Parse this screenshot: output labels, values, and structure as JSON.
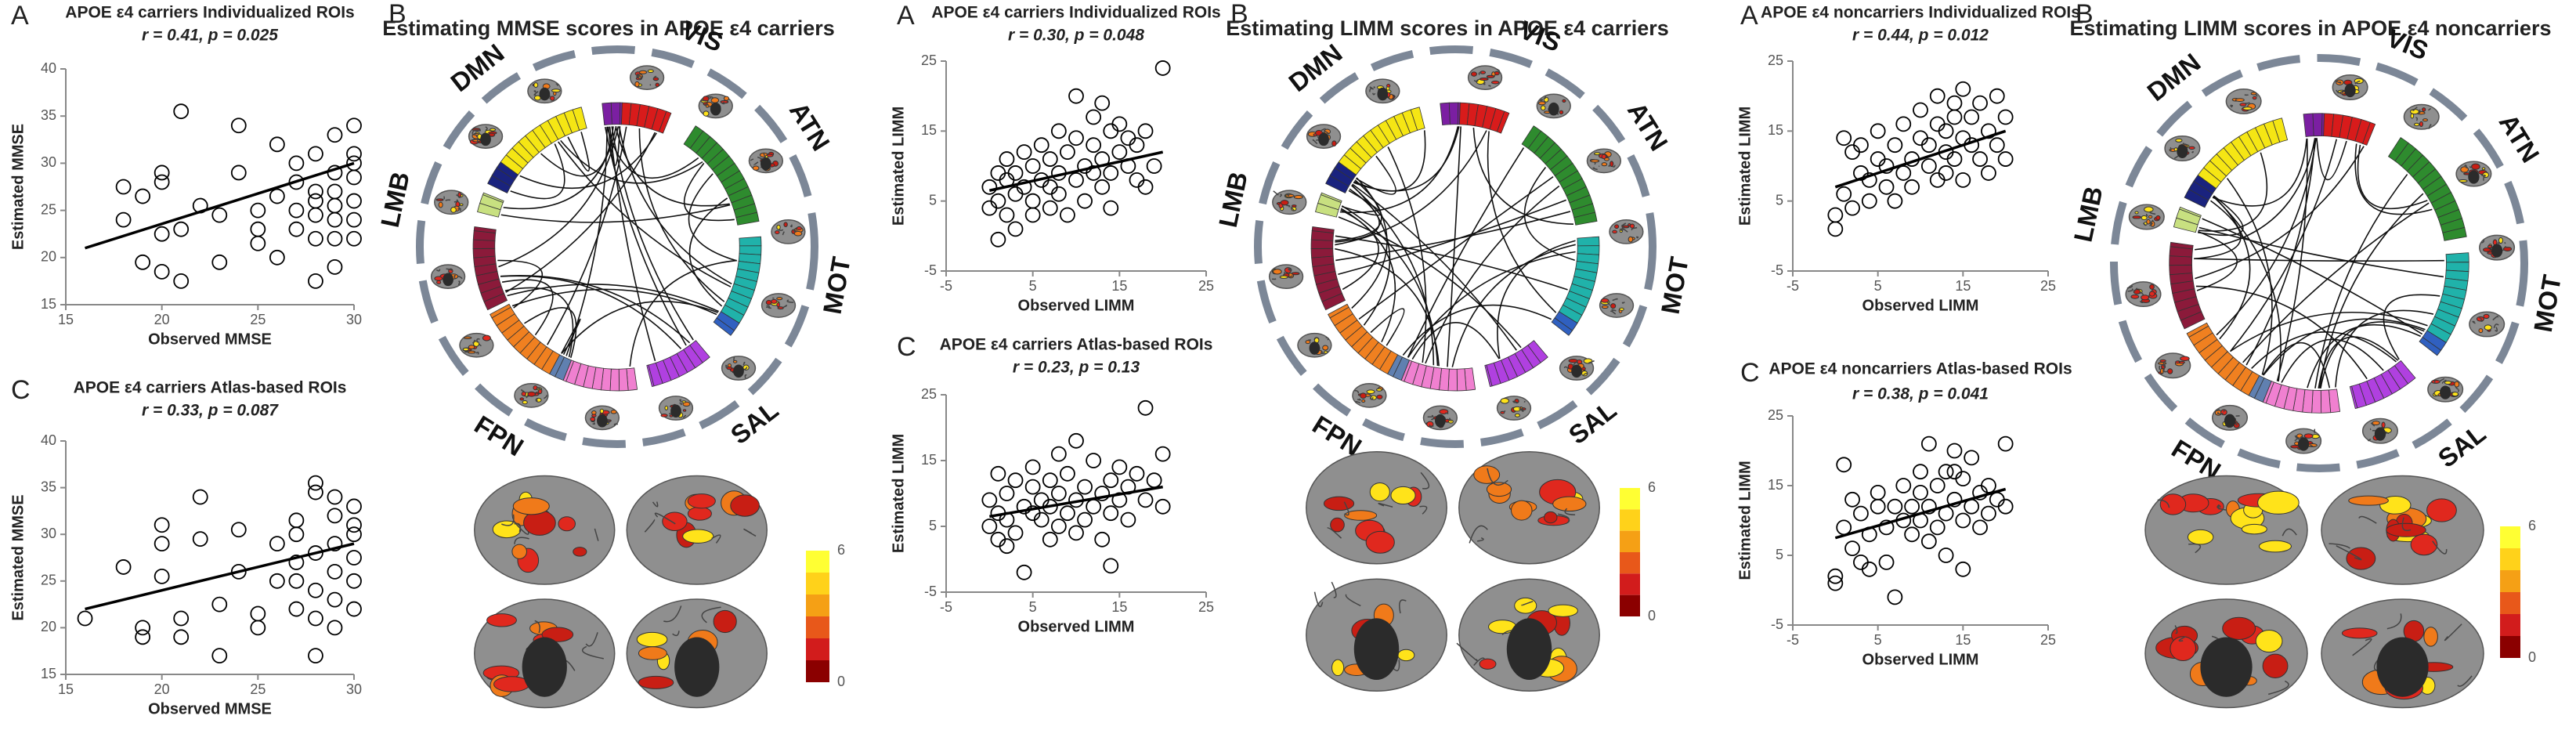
{
  "chart_data": [
    {
      "type": "scatter",
      "panel": "A",
      "title": "APOE ε4 carriers Individualized ROIs",
      "subtitle": "r = 0.41, p = 0.025",
      "x_label": "Observed MMSE",
      "y_label": "Estimated MMSE",
      "color": "#000000",
      "xlim": [
        15,
        30
      ],
      "xticks": [
        15,
        20,
        25,
        30
      ],
      "ylim": [
        15,
        40
      ],
      "yticks": [
        15,
        20,
        25,
        30,
        35,
        40
      ],
      "x": [
        18,
        18,
        19,
        19,
        20,
        20,
        20,
        20,
        21,
        21,
        21,
        22,
        23,
        23,
        24,
        24,
        25,
        25,
        25,
        26,
        26,
        26,
        27,
        27,
        27,
        27,
        28,
        28,
        28,
        28,
        28,
        29,
        29,
        29,
        29,
        29,
        29,
        30,
        30,
        30,
        30,
        30,
        30,
        30,
        29,
        28
      ],
      "values": [
        27.5,
        24,
        19.5,
        26.5,
        29,
        28,
        22.5,
        18.5,
        35.5,
        23,
        17.5,
        25.5,
        19.5,
        24.5,
        34,
        29,
        21.5,
        25,
        23,
        26.5,
        32,
        20,
        28,
        25,
        30,
        23,
        27,
        17.5,
        22,
        31,
        26,
        33,
        29,
        27,
        24,
        22,
        19,
        34,
        31,
        28.5,
        26,
        24,
        22,
        30,
        25.5,
        24.5
      ],
      "fit": {
        "x": [
          16,
          30
        ],
        "y": [
          21,
          30
        ]
      }
    },
    {
      "type": "scatter",
      "panel": "C",
      "title": "APOE ε4 carriers Atlas-based ROIs",
      "subtitle": "r = 0.33, p = 0.087",
      "x_label": "Observed MMSE",
      "y_label": "Estimated MMSE",
      "color": "#000000",
      "xlim": [
        15,
        30
      ],
      "xticks": [
        15,
        20,
        25,
        30
      ],
      "ylim": [
        15,
        40
      ],
      "yticks": [
        15,
        20,
        25,
        30,
        35,
        40
      ],
      "x": [
        16,
        18,
        19,
        19,
        20,
        20,
        20,
        21,
        21,
        22,
        22,
        23,
        23,
        24,
        24,
        25,
        25,
        26,
        26,
        27,
        27,
        27,
        27,
        28,
        28,
        28,
        28,
        28,
        29,
        29,
        29,
        29,
        29,
        29,
        30,
        30,
        30,
        30,
        30,
        30,
        28,
        27
      ],
      "values": [
        21,
        26.5,
        20,
        19,
        25.5,
        29,
        31,
        19,
        21,
        29.5,
        34,
        22.5,
        17,
        30.5,
        26,
        21.5,
        20,
        29,
        25,
        31.5,
        25,
        22,
        30,
        35.5,
        34.5,
        17,
        24,
        28,
        34,
        32,
        29,
        26,
        23,
        20,
        33,
        30,
        27.5,
        25,
        22,
        31,
        21,
        27
      ],
      "fit": {
        "x": [
          16,
          30
        ],
        "y": [
          22,
          29
        ]
      }
    },
    {
      "type": "scatter",
      "panel": "A",
      "title": "APOE ε4 carriers Individualized ROIs",
      "subtitle": "r = 0.30, p = 0.048",
      "x_label": "Observed LIMM",
      "y_label": "Estimated LIMM",
      "color": "#000000",
      "xlim": [
        -5,
        25
      ],
      "xticks": [
        -5,
        5,
        15,
        25
      ],
      "ylim": [
        -5,
        25
      ],
      "yticks": [
        -5,
        5,
        15,
        25
      ],
      "x": [
        0,
        0,
        1,
        1,
        1,
        2,
        2,
        2,
        3,
        3,
        3,
        4,
        4,
        5,
        5,
        5,
        6,
        6,
        7,
        7,
        7,
        8,
        8,
        8,
        9,
        9,
        10,
        10,
        10,
        11,
        11,
        12,
        12,
        12,
        13,
        13,
        13,
        14,
        14,
        14,
        15,
        15,
        16,
        16,
        17,
        17,
        18,
        19,
        20,
        18
      ],
      "values": [
        7,
        4,
        9,
        -0.5,
        5,
        8,
        3,
        11,
        6,
        9,
        1,
        12,
        7,
        5,
        10,
        3,
        8,
        13,
        7,
        11,
        4,
        9,
        15,
        6,
        12,
        3,
        20,
        8,
        14,
        10,
        5,
        17,
        9,
        13,
        7,
        19,
        11,
        15,
        9,
        4,
        12,
        16,
        10,
        14,
        8,
        13,
        15,
        10,
        24,
        7
      ],
      "fit": {
        "x": [
          0,
          20
        ],
        "y": [
          6.5,
          12
        ]
      }
    },
    {
      "type": "scatter",
      "panel": "C",
      "title": "APOE ε4 carriers Atlas-based ROIs",
      "subtitle": "r = 0.23, p = 0.13",
      "x_label": "Observed LIMM",
      "y_label": "Estimated LIMM",
      "color": "#000000",
      "xlim": [
        -5,
        25
      ],
      "xticks": [
        -5,
        5,
        15,
        25
      ],
      "ylim": [
        -5,
        25
      ],
      "yticks": [
        -5,
        5,
        15,
        25
      ],
      "x": [
        0,
        0,
        1,
        1,
        1,
        2,
        2,
        2,
        3,
        3,
        4,
        4,
        5,
        5,
        5,
        6,
        6,
        7,
        7,
        7,
        8,
        8,
        8,
        9,
        9,
        10,
        10,
        10,
        11,
        11,
        12,
        12,
        13,
        13,
        14,
        14,
        14,
        15,
        15,
        16,
        16,
        17,
        18,
        18,
        19,
        20,
        20
      ],
      "values": [
        9,
        5,
        7,
        3,
        13,
        10,
        6,
        2,
        12,
        4,
        8,
        -2,
        7,
        11,
        14,
        6,
        9,
        3,
        8,
        12,
        10,
        5,
        16,
        7,
        13,
        9,
        4,
        18,
        11,
        6,
        8,
        15,
        10,
        3,
        12,
        -1,
        7,
        14,
        9,
        11,
        6,
        13,
        23,
        9,
        12,
        16,
        8
      ],
      "fit": {
        "x": [
          0,
          20
        ],
        "y": [
          6.5,
          11
        ]
      }
    },
    {
      "type": "scatter",
      "panel": "A",
      "title": "APOE ε4 noncarriers Individualized ROIs",
      "subtitle": "r = 0.44, p = 0.012",
      "x_label": "Observed LIMM",
      "y_label": "Estimated LIMM",
      "color": "#000000",
      "xlim": [
        -5,
        25
      ],
      "xticks": [
        -5,
        5,
        15,
        25
      ],
      "ylim": [
        -5,
        25
      ],
      "yticks": [
        -5,
        5,
        15,
        25
      ],
      "x": [
        0,
        0,
        1,
        1,
        2,
        2,
        3,
        3,
        4,
        4,
        5,
        5,
        6,
        6,
        7,
        7,
        8,
        8,
        9,
        9,
        10,
        10,
        11,
        11,
        12,
        12,
        12,
        13,
        13,
        13,
        14,
        14,
        14,
        15,
        15,
        15,
        16,
        16,
        17,
        17,
        18,
        18,
        19,
        20,
        20,
        19
      ],
      "values": [
        1,
        3,
        14,
        6,
        12,
        4,
        9,
        13,
        5,
        8,
        11,
        15,
        7,
        10,
        13,
        5,
        9,
        16,
        11,
        7,
        14,
        18,
        10,
        13,
        8,
        16,
        20,
        12,
        15,
        9,
        17,
        11,
        19,
        14,
        8,
        21,
        13,
        17,
        11,
        19,
        15,
        9,
        13,
        17,
        11,
        20
      ],
      "fit": {
        "x": [
          0,
          20
        ],
        "y": [
          7,
          15
        ]
      }
    },
    {
      "type": "scatter",
      "panel": "C",
      "title": "APOE ε4 noncarriers Atlas-based ROIs",
      "subtitle": "r = 0.38, p = 0.041",
      "x_label": "Observed LIMM",
      "y_label": "Estimated LIMM",
      "color": "#000000",
      "xlim": [
        -5,
        25
      ],
      "xticks": [
        -5,
        5,
        15,
        25
      ],
      "ylim": [
        -5,
        25
      ],
      "yticks": [
        -5,
        5,
        15,
        25
      ],
      "x": [
        0,
        0,
        1,
        1,
        2,
        2,
        3,
        3,
        4,
        4,
        5,
        5,
        6,
        6,
        7,
        7,
        8,
        8,
        9,
        9,
        10,
        10,
        10,
        11,
        11,
        11,
        12,
        12,
        13,
        13,
        13,
        14,
        14,
        15,
        15,
        15,
        16,
        16,
        17,
        17,
        18,
        18,
        19,
        20,
        20,
        14
      ],
      "values": [
        1,
        2,
        18,
        9,
        13,
        6,
        4,
        11,
        8,
        3,
        12,
        14,
        9,
        4,
        12,
        -1,
        10,
        15,
        8,
        12,
        14,
        10,
        17,
        7,
        12,
        21,
        15,
        9,
        11,
        17,
        5,
        13,
        20,
        10,
        16,
        3,
        12,
        19,
        14,
        9,
        11,
        15,
        13,
        12,
        21,
        17
      ],
      "fit": {
        "x": [
          0,
          20
        ],
        "y": [
          7.5,
          14.5
        ]
      }
    }
  ],
  "chord_panels": [
    {
      "panel": "B",
      "title": "Estimating MMSE scores in APOE ε4 carriers",
      "networks": [
        "DMN",
        "VIS",
        "ATN",
        "MOT",
        "SAL",
        "FPN",
        "LMB"
      ],
      "colorbar_ticks": [
        6,
        0
      ]
    },
    {
      "panel": "B",
      "title": "Estimating LIMM scores in APOE ε4 carriers",
      "networks": [
        "DMN",
        "VIS",
        "ATN",
        "MOT",
        "SAL",
        "FPN",
        "LMB"
      ],
      "colorbar_ticks": [
        6,
        0
      ]
    },
    {
      "panel": "B",
      "title": "Estimating LIMM scores in APOE ε4 noncarriers",
      "networks": [
        "DMN",
        "VIS",
        "ATN",
        "MOT",
        "SAL",
        "FPN",
        "LMB"
      ],
      "colorbar_ticks": [
        6,
        0
      ]
    }
  ]
}
